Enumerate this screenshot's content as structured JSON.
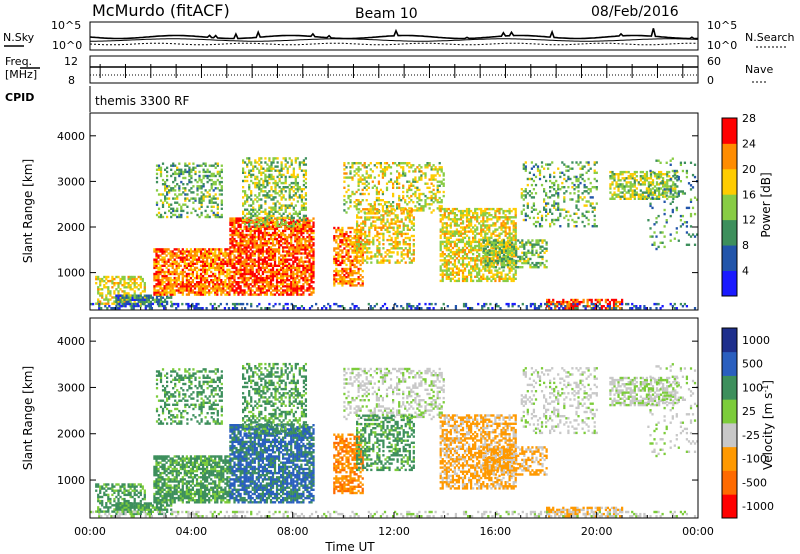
{
  "header": {
    "station": "McMurdo (fitACF)",
    "beam": "Beam 10",
    "date": "08/Feb/2016"
  },
  "top_panels": {
    "nsky_label": "N.Sky",
    "nsky_ticks": [
      "10^5",
      "10^0"
    ],
    "nsearch_label": "N.Search",
    "nsearch_ticks": [
      "10^5",
      "10^0"
    ],
    "freq_label_1": "Freq.",
    "freq_label_2": "[MHz]",
    "freq_ticks": [
      "12",
      "8"
    ],
    "nave_label": "Nave",
    "nave_ticks": [
      "60",
      "0"
    ],
    "cpid_label": "CPID",
    "cpid_text": "themis 3300 RF"
  },
  "chart_data": [
    {
      "type": "heatmap",
      "name": "power",
      "ylabel": "Slant Range [km]",
      "xlim": [
        0,
        24
      ],
      "ylim": [
        180,
        4500
      ],
      "y_ticks": [
        "1000",
        "2000",
        "3000",
        "4000"
      ],
      "colorbar_label": "Power [dB]",
      "colorbar_ticks": [
        "4",
        "8",
        "12",
        "16",
        "20",
        "24",
        "28"
      ],
      "colors": [
        "#1a1aff",
        "#2255aa",
        "#3d8f5c",
        "#88cc44",
        "#ffcc00",
        "#ff8c00",
        "#ff0000"
      ]
    },
    {
      "type": "heatmap",
      "name": "velocity",
      "ylabel": "Slant Range [km]",
      "xlabel": "Time UT",
      "xlim": [
        0,
        24
      ],
      "ylim": [
        180,
        4500
      ],
      "y_ticks": [
        "1000",
        "2000",
        "3000",
        "4000"
      ],
      "x_ticks": [
        "00:00",
        "04:00",
        "08:00",
        "12:00",
        "16:00",
        "20:00",
        "00:00"
      ],
      "colorbar_label": "Velocity [m s",
      "colorbar_unit_sup": "-1",
      "colorbar_unit_end": "]",
      "colorbar_ticks": [
        "1000",
        "500",
        "100",
        "25",
        "-25",
        "-100",
        "-500",
        "-1000"
      ],
      "colors": [
        "#1e2f8c",
        "#2a5fbf",
        "#3d8f5c",
        "#7ccc3a",
        "#c8c8c8",
        "#ff9900",
        "#ff6a00",
        "#ff0000"
      ]
    }
  ]
}
